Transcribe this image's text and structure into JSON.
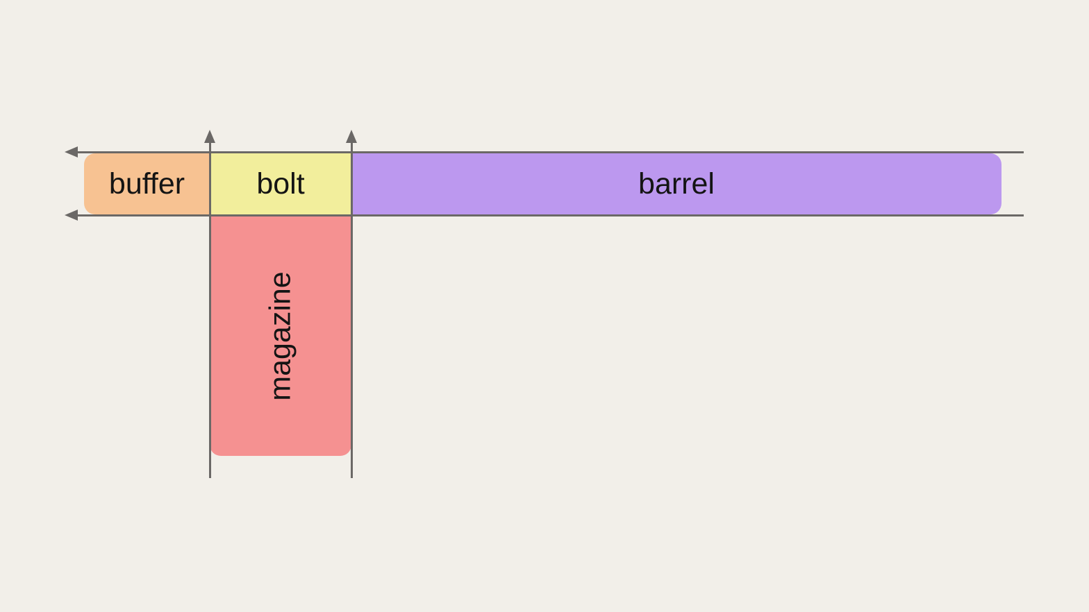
{
  "diagram": {
    "background_color": "#F2EFE9",
    "guide_color": "#6B6866",
    "label_color": "#141414",
    "blocks": [
      {
        "id": "buffer",
        "label": "buffer",
        "color": "#F7C292",
        "orientation": "horizontal"
      },
      {
        "id": "bolt",
        "label": "bolt",
        "color": "#F2EE9C",
        "orientation": "horizontal"
      },
      {
        "id": "barrel",
        "label": "barrel",
        "color": "#BC98EF",
        "orientation": "horizontal"
      },
      {
        "id": "magazine",
        "label": "magazine",
        "color": "#F59191",
        "orientation": "vertical"
      }
    ],
    "guides": {
      "horizontal_lines": 2,
      "horizontal_arrow_direction": "left",
      "vertical_lines": 2,
      "vertical_arrow_direction": "up"
    }
  }
}
